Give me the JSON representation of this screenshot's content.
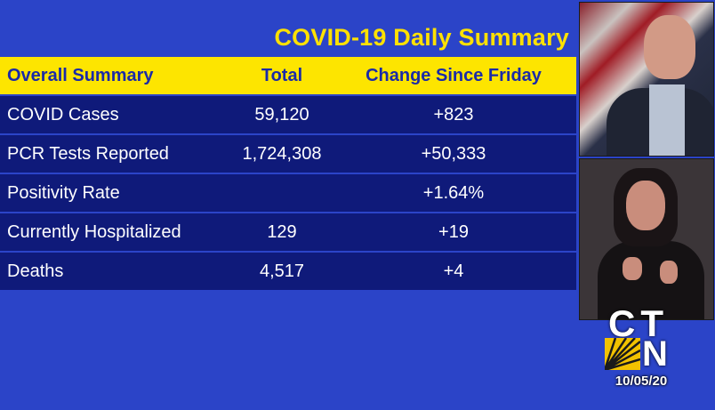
{
  "title": "COVID-19 Daily Summary",
  "table": {
    "headers": [
      "Overall Summary",
      "Total",
      "Change Since Friday"
    ],
    "rows": [
      {
        "label": "COVID Cases",
        "total": "59,120",
        "change": "+823"
      },
      {
        "label": "PCR Tests Reported",
        "total": "1,724,308",
        "change": "+50,333"
      },
      {
        "label": "Positivity Rate",
        "total": "",
        "change": "+1.64%"
      },
      {
        "label": "Currently Hospitalized",
        "total": "129",
        "change": "+19"
      },
      {
        "label": "Deaths",
        "total": "4,517",
        "change": "+4"
      }
    ]
  },
  "broadcast": {
    "logo_ct": "CT",
    "logo_n": "N",
    "date": "10/05/20"
  },
  "colors": {
    "background": "#2b44c8",
    "header_bg": "#fde500",
    "row_bg": "#0f1a7a",
    "title": "#ffe100"
  }
}
